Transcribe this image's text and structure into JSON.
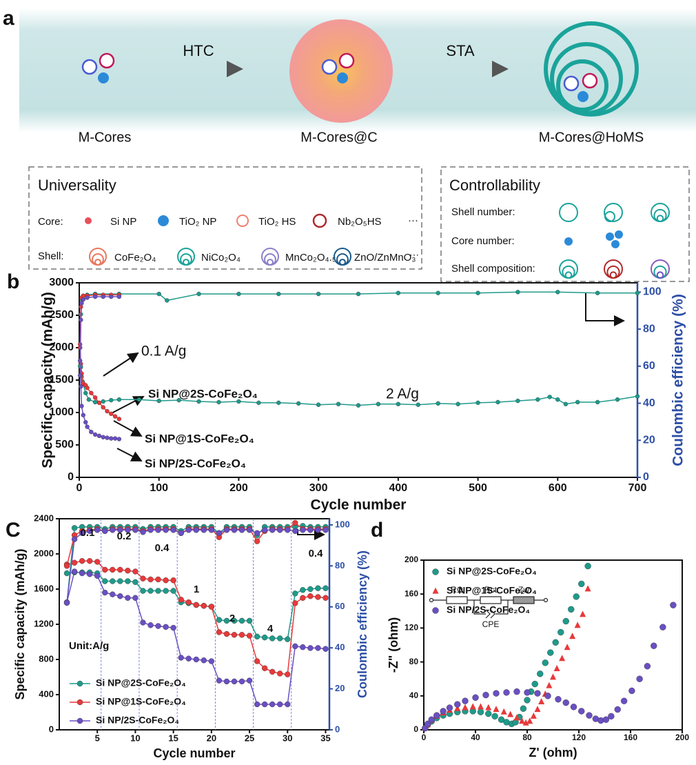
{
  "schematic": {
    "panel_label": "a",
    "steps": [
      "HTC",
      "STA"
    ],
    "stages": [
      "M-Cores",
      "M-Cores@C",
      "M-Cores@HoMS"
    ],
    "universality": {
      "title": "Universality",
      "core_label": "Core:",
      "cores": [
        "Si NP",
        "TiO₂ NP",
        "TiO₂ HS",
        "Nb₂O₅HS",
        "···"
      ],
      "shell_label": "Shell:",
      "shells": [
        "CoFe₂O₄",
        "NiCo₂O₄",
        "MnCo₂O₄.₅",
        "ZnO/ZnMnO₃",
        "···"
      ]
    },
    "controllability": {
      "title": "Controllability",
      "rows": [
        "Shell number:",
        "Core number:",
        "Shell composition:"
      ]
    }
  },
  "chart_data": [
    {
      "type": "line",
      "panel_label": "b",
      "xlabel": "Cycle number",
      "ylabel": "Specific capacity (mAh/g)",
      "y2label": "Coulombic efficiency (%)",
      "xlim": [
        0,
        700
      ],
      "ylim": [
        0,
        3000
      ],
      "y2lim": [
        0,
        105
      ],
      "xticks": [
        0,
        100,
        200,
        300,
        400,
        500,
        600,
        700
      ],
      "yticks": [
        0,
        500,
        1000,
        1500,
        2000,
        2500,
        3000
      ],
      "y2ticks": [
        0,
        20,
        40,
        60,
        80,
        100
      ],
      "annotations": [
        "0.1 A/g",
        "2 A/g"
      ],
      "series": [
        {
          "name": "Si NP@2S-CoFe₂O₄",
          "color": "#1f9a8a",
          "marker": "circle",
          "x": [
            1,
            2,
            3,
            4,
            5,
            8,
            12,
            20,
            30,
            40,
            50,
            75,
            100,
            125,
            150,
            175,
            200,
            225,
            250,
            275,
            300,
            325,
            350,
            375,
            400,
            425,
            450,
            475,
            500,
            525,
            550,
            575,
            590,
            600,
            610,
            625,
            650,
            675,
            700
          ],
          "values": [
            2000,
            1700,
            1550,
            1480,
            1440,
            1300,
            1200,
            1160,
            1170,
            1190,
            1200,
            1200,
            1180,
            1190,
            1170,
            1160,
            1170,
            1150,
            1150,
            1140,
            1120,
            1130,
            1110,
            1130,
            1130,
            1120,
            1140,
            1130,
            1150,
            1160,
            1180,
            1200,
            1240,
            1200,
            1130,
            1160,
            1160,
            1200,
            1250
          ]
        },
        {
          "name": "Si NP@1S-CoFe₂O₄",
          "color": "#e8393a",
          "marker": "circle",
          "x": [
            1,
            2,
            3,
            5,
            8,
            10,
            15,
            20,
            25,
            30,
            35,
            40,
            45,
            50
          ],
          "values": [
            2050,
            1750,
            1600,
            1450,
            1420,
            1380,
            1300,
            1230,
            1150,
            1080,
            1020,
            980,
            940,
            900
          ]
        },
        {
          "name": "Si NP/2S-CoFe₂O₄",
          "color": "#6a4fc2",
          "marker": "circle",
          "x": [
            1,
            2,
            3,
            5,
            8,
            10,
            15,
            20,
            25,
            30,
            35,
            40,
            45,
            50
          ],
          "values": [
            1800,
            1400,
            1100,
            960,
            850,
            780,
            700,
            660,
            640,
            620,
            610,
            600,
            600,
            590
          ]
        },
        {
          "color": "#1f9a8a",
          "marker": "circle",
          "axis": "y2",
          "x": [
            1,
            2,
            3,
            5,
            10,
            20,
            50,
            100,
            110,
            150,
            200,
            250,
            300,
            350,
            400,
            450,
            500,
            550,
            600,
            650,
            700
          ],
          "values": [
            60,
            88,
            96,
            98,
            98.5,
            99,
            99,
            99,
            95.5,
            99,
            99,
            99,
            99,
            99,
            99.5,
            99.5,
            99.5,
            100,
            100,
            99.5,
            99.5
          ]
        },
        {
          "color": "#e8393a",
          "marker": "circle",
          "axis": "y2",
          "x": [
            1,
            2,
            3,
            5,
            10,
            20,
            30,
            40,
            50
          ],
          "values": [
            70,
            92,
            97,
            98,
            98,
            98.5,
            98.5,
            98.5,
            98.5
          ]
        },
        {
          "color": "#6a4fc2",
          "marker": "circle",
          "axis": "y2",
          "x": [
            1,
            2,
            3,
            5,
            10,
            20,
            30,
            40,
            50
          ],
          "values": [
            55,
            85,
            94,
            96,
            97,
            97.5,
            97.5,
            97.5,
            97.5
          ]
        }
      ]
    },
    {
      "type": "line",
      "panel_label": "C",
      "xlabel": "Cycle number",
      "ylabel": "Specific capacity (mAh/g)",
      "y2label": "Coulombic efficiency (%)",
      "xlim": [
        0,
        35.5
      ],
      "ylim": [
        0,
        2400
      ],
      "y2lim": [
        0,
        103
      ],
      "xticks": [
        5,
        10,
        15,
        20,
        25,
        30,
        35
      ],
      "yticks": [
        0,
        400,
        800,
        1200,
        1600,
        2000,
        2400
      ],
      "y2ticks": [
        0,
        20,
        40,
        60,
        80,
        100
      ],
      "legend": "lower left",
      "annotations": [
        "0.1",
        "0.2",
        "0.4",
        "1",
        "2",
        "4",
        "0.4",
        "Unit:A/g"
      ],
      "x": [
        1,
        2,
        3,
        4,
        5,
        6,
        7,
        8,
        9,
        10,
        11,
        12,
        13,
        14,
        15,
        16,
        17,
        18,
        19,
        20,
        21,
        22,
        23,
        24,
        25,
        26,
        27,
        28,
        29,
        30,
        31,
        32,
        33,
        34,
        35
      ],
      "series": [
        {
          "name": "Si NP@2S-CoFe₂O₄",
          "color": "#1f9a8a",
          "marker": "circle",
          "values": [
            1780,
            1790,
            1790,
            1790,
            1780,
            1690,
            1690,
            1690,
            1690,
            1680,
            1580,
            1580,
            1580,
            1580,
            1580,
            1450,
            1440,
            1420,
            1410,
            1400,
            1250,
            1240,
            1240,
            1240,
            1240,
            1060,
            1050,
            1040,
            1040,
            1030,
            1550,
            1590,
            1600,
            1610,
            1610
          ]
        },
        {
          "name": "Si NP@1S-CoFe₂O₄",
          "color": "#e8393a",
          "marker": "circle",
          "values": [
            1880,
            1900,
            1920,
            1920,
            1910,
            1820,
            1820,
            1820,
            1810,
            1800,
            1720,
            1710,
            1710,
            1700,
            1700,
            1480,
            1450,
            1420,
            1410,
            1400,
            1110,
            1090,
            1080,
            1080,
            1070,
            780,
            700,
            660,
            640,
            630,
            1440,
            1500,
            1520,
            1510,
            1500
          ]
        },
        {
          "name": "Si NP/2S-CoFe₂O₄",
          "color": "#6a4fc2",
          "marker": "circle",
          "values": [
            1450,
            1800,
            1780,
            1770,
            1750,
            1560,
            1540,
            1520,
            1500,
            1500,
            1220,
            1190,
            1180,
            1170,
            1160,
            820,
            810,
            800,
            790,
            780,
            560,
            550,
            550,
            550,
            560,
            290,
            290,
            290,
            290,
            290,
            950,
            940,
            930,
            930,
            920
          ]
        },
        {
          "color": "#1f9a8a",
          "marker": "circle",
          "axis": "y2",
          "values": [
            62,
            98.5,
            99,
            99,
            99,
            98,
            99,
            99,
            99,
            99,
            98,
            99,
            99,
            99,
            99,
            97,
            99,
            99,
            99,
            99,
            96,
            99,
            99,
            99,
            99,
            95,
            99,
            99,
            99,
            99,
            99,
            99.5,
            99,
            99,
            99
          ]
        },
        {
          "color": "#e8393a",
          "marker": "circle",
          "axis": "y2",
          "values": [
            80,
            95,
            97,
            97.5,
            98,
            97,
            98,
            98,
            98,
            98,
            97,
            98,
            98,
            98,
            98,
            96,
            98,
            98,
            98,
            98,
            94,
            98,
            98,
            98,
            98,
            92,
            97,
            98,
            98,
            98,
            101,
            98,
            98,
            98,
            98
          ]
        },
        {
          "color": "#6a4fc2",
          "marker": "circle",
          "axis": "y2",
          "values": [
            62,
            93,
            96,
            97,
            97.5,
            97,
            97.5,
            97.5,
            97.5,
            97.5,
            96.5,
            97.5,
            97.5,
            97.5,
            97.5,
            96,
            97.5,
            97.5,
            97.5,
            97.5,
            96,
            97.5,
            97.5,
            97.5,
            97.5,
            96,
            97.5,
            97.5,
            97.5,
            97.5,
            97,
            97.5,
            97.5,
            97.5,
            97.5
          ]
        }
      ]
    },
    {
      "type": "scatter",
      "panel_label": "d",
      "xlabel": "Z' (ohm)",
      "ylabel": "-Z\" (ohm)",
      "xlim": [
        0,
        200
      ],
      "ylim": [
        0,
        200
      ],
      "xticks": [
        0,
        40,
        80,
        120,
        160,
        200
      ],
      "yticks": [
        0,
        40,
        80,
        120,
        160,
        200
      ],
      "legend": "upper left",
      "circuit": [
        "RΩ",
        "Rct",
        "Zw",
        "CPE"
      ],
      "series": [
        {
          "name": "Si NP@2S-CoFe₂O₄",
          "color": "#1f9a8a",
          "marker": "circle",
          "x": [
            1,
            3,
            6,
            10,
            15,
            20,
            26,
            32,
            38,
            44,
            50,
            55,
            60,
            64,
            68,
            71,
            74,
            77,
            80,
            83,
            86,
            90,
            94,
            98,
            102,
            106,
            110,
            114,
            118,
            122,
            127
          ],
          "values": [
            2,
            6,
            10,
            14,
            17,
            19,
            21,
            22,
            22,
            21,
            19,
            16,
            12,
            9,
            7,
            9,
            15,
            25,
            35,
            45,
            54,
            66,
            79,
            91,
            103,
            115,
            128,
            142,
            157,
            172,
            193
          ]
        },
        {
          "name": "Si NP@1S-CoFe₂O₄",
          "color": "#e8393a",
          "marker": "triangle",
          "x": [
            1,
            3,
            6,
            10,
            15,
            20,
            26,
            32,
            38,
            44,
            50,
            56,
            62,
            67,
            72,
            76,
            79,
            82,
            85,
            88,
            91,
            94,
            97,
            100,
            103,
            107,
            111,
            115,
            119,
            123,
            127
          ],
          "values": [
            2,
            6,
            11,
            16,
            20,
            23,
            25,
            26,
            27,
            27,
            26,
            24,
            21,
            18,
            14,
            10,
            8,
            10,
            16,
            24,
            33,
            42,
            52,
            62,
            72,
            84,
            97,
            110,
            123,
            136,
            166
          ]
        },
        {
          "name": "Si NP/2S-CoFe₂O₄",
          "color": "#6a4fc2",
          "marker": "circle",
          "x": [
            1,
            3,
            6,
            10,
            15,
            20,
            26,
            32,
            40,
            48,
            56,
            64,
            72,
            80,
            88,
            96,
            104,
            110,
            116,
            122,
            128,
            133,
            137,
            141,
            145,
            150,
            155,
            161,
            167,
            173,
            178,
            185,
            193
          ],
          "values": [
            2,
            7,
            12,
            17,
            22,
            26,
            30,
            34,
            38,
            41,
            43,
            44,
            45,
            44,
            43,
            40,
            36,
            32,
            27,
            22,
            17,
            13,
            11,
            12,
            16,
            24,
            34,
            46,
            60,
            75,
            99,
            121,
            147
          ]
        }
      ]
    }
  ]
}
